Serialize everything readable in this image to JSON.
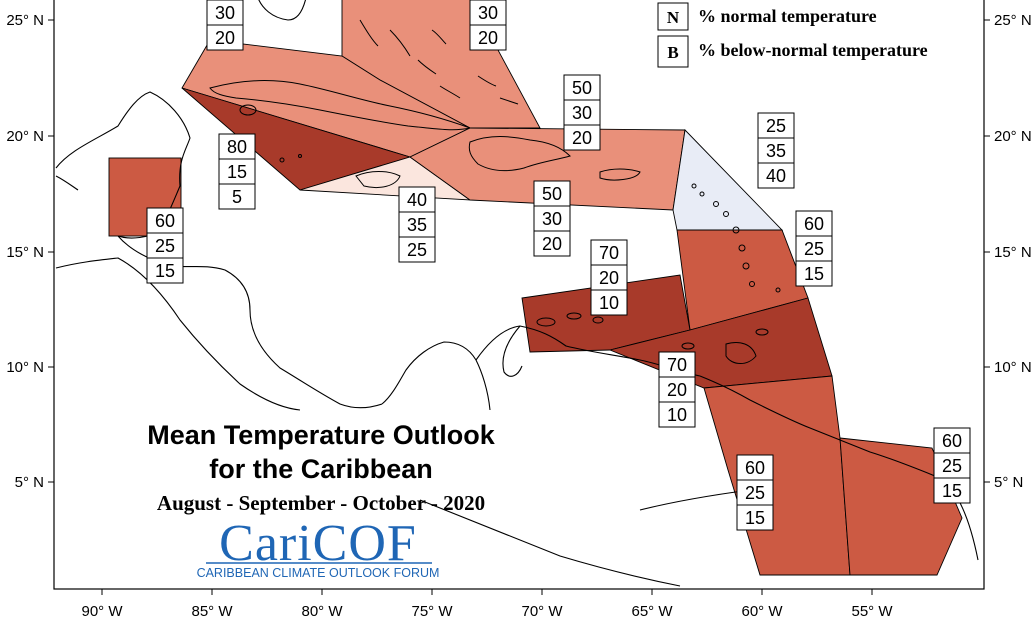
{
  "title_line1": "Mean Temperature Outlook",
  "title_line2": "for the Caribbean",
  "subtitle": "August - September - October - 2020",
  "logo": {
    "name": "CariCOF",
    "tagline": "CARIBBEAN CLIMATE OUTLOOK FORUM"
  },
  "legend": [
    {
      "key": "N",
      "label": "% normal temperature"
    },
    {
      "key": "B",
      "label": "% below-normal temperature"
    }
  ],
  "axes": {
    "longitude_ticks": [
      "90° W",
      "85° W",
      "80° W",
      "75° W",
      "70° W",
      "65° W",
      "60° W",
      "55° W"
    ],
    "latitude_ticks": [
      "25° N",
      "20° N",
      "15° N",
      "10° N",
      "5° N"
    ]
  },
  "colors": {
    "above_80": "#a83a2a",
    "above_70": "#a83a2a",
    "above_60": "#cc5a43",
    "above_50": "#e9907a",
    "above_40": "#fbe6de",
    "normal_40": "#e8ecf6",
    "border": "#000000",
    "logo": "#1f66b5"
  },
  "regions": [
    {
      "id": "bahamas",
      "probabilities": [
        "50",
        "30",
        "20"
      ]
    },
    {
      "id": "turks-caicos",
      "probabilities": [
        "50",
        "30",
        "20"
      ]
    },
    {
      "id": "cuba",
      "probabilities": [
        "50",
        "30",
        "20"
      ]
    },
    {
      "id": "cayman-belt",
      "probabilities": [
        "80",
        "15",
        "5"
      ]
    },
    {
      "id": "jamaica",
      "probabilities": [
        "40",
        "35",
        "25"
      ]
    },
    {
      "id": "hispaniola",
      "probabilities": [
        "50",
        "30",
        "20"
      ]
    },
    {
      "id": "puerto-rico",
      "probabilities": [
        "50",
        "30",
        "20"
      ]
    },
    {
      "id": "leeward-islands",
      "probabilities": [
        "25",
        "35",
        "40"
      ]
    },
    {
      "id": "windward-islands",
      "probabilities": [
        "60",
        "25",
        "15"
      ]
    },
    {
      "id": "belize",
      "probabilities": [
        "60",
        "25",
        "15"
      ]
    },
    {
      "id": "abc-islands",
      "probabilities": [
        "70",
        "20",
        "10"
      ]
    },
    {
      "id": "trinidad-tobago",
      "probabilities": [
        "70",
        "20",
        "10"
      ]
    },
    {
      "id": "guyana",
      "probabilities": [
        "60",
        "25",
        "15"
      ]
    },
    {
      "id": "suriname-guiana",
      "probabilities": [
        "60",
        "25",
        "15"
      ]
    }
  ]
}
